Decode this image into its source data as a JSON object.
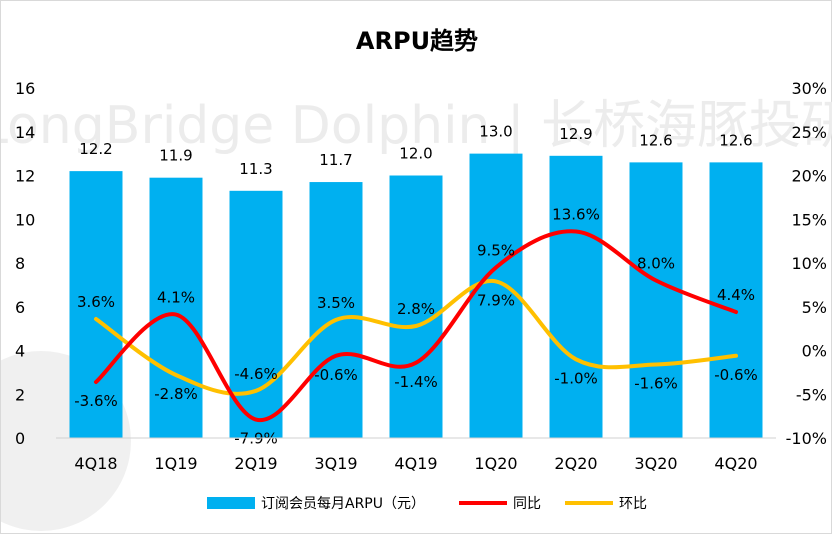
{
  "chart_data": {
    "type": "bar",
    "title": "ARPU趋势",
    "watermark": "LongBridge Dolphin | 长桥海豚投研",
    "categories": [
      "4Q18",
      "1Q19",
      "2Q19",
      "3Q19",
      "4Q19",
      "1Q20",
      "2Q20",
      "3Q20",
      "4Q20"
    ],
    "bar_series": {
      "name": "订阅会员每月ARPU（元）",
      "color": "#00b0f0",
      "values": [
        12.2,
        11.9,
        11.3,
        11.7,
        12.0,
        13.0,
        12.9,
        12.6,
        12.6
      ],
      "labels": [
        "12.2",
        "11.9",
        "11.3",
        "11.7",
        "12.0",
        "13.0",
        "12.9",
        "12.6",
        "12.6"
      ]
    },
    "line_series": [
      {
        "name": "同比",
        "color": "#ff0000",
        "values": [
          -3.6,
          4.1,
          -7.9,
          -0.6,
          -1.4,
          9.5,
          13.6,
          8.0,
          4.4
        ],
        "labels": [
          "-3.6%",
          "4.1%",
          "-7.9%",
          "-0.6%",
          "-1.4%",
          "9.5%",
          "13.6%",
          "8.0%",
          "4.4%"
        ]
      },
      {
        "name": "环比",
        "color": "#ffc000",
        "values": [
          3.6,
          -2.8,
          -4.6,
          3.5,
          2.8,
          7.9,
          -1.0,
          -1.6,
          -0.6
        ],
        "labels": [
          "3.6%",
          "-2.8%",
          "-4.6%",
          "3.5%",
          "2.8%",
          "7.9%",
          "-1.0%",
          "-1.6%",
          "-0.6%"
        ]
      }
    ],
    "y_left": {
      "min": 0,
      "max": 16,
      "ticks": [
        "0",
        "2",
        "4",
        "6",
        "8",
        "10",
        "12",
        "14",
        "16"
      ]
    },
    "y_right": {
      "min": -10,
      "max": 30,
      "ticks": [
        "-10%",
        "-5%",
        "0%",
        "5%",
        "10%",
        "15%",
        "20%",
        "25%",
        "30%"
      ]
    },
    "legend_position": "bottom",
    "grid": false
  }
}
